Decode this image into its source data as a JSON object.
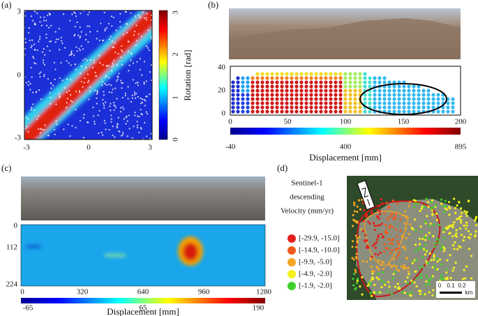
{
  "panels": [
    {
      "label": "(a)",
      "yticks": [
        "3",
        "0",
        "-3"
      ],
      "xticks": [
        "-3",
        "0",
        "3"
      ],
      "colorbar": {
        "ticks": [
          "3",
          "2",
          "1",
          "0"
        ],
        "label": "Rotation [rad]"
      }
    },
    {
      "label": "(b)",
      "yticks": [
        "40",
        "20",
        "0"
      ],
      "xticks": [
        "0",
        "50",
        "100",
        "150",
        "200"
      ],
      "colorbar": {
        "ticks": [
          "-40",
          "400",
          "895"
        ],
        "label": "Displacement [mm]"
      }
    },
    {
      "label": "(c)",
      "yticks": [
        "0",
        "112",
        "224"
      ],
      "xticks": [
        "0",
        "320",
        "640",
        "960",
        "1280"
      ],
      "colorbar": {
        "ticks": [
          "-65",
          "65",
          "190"
        ],
        "label": "Displacement [mm]"
      }
    },
    {
      "label": "(d)",
      "title": [
        "Sentinel-1",
        "descending",
        "Velocity (mm/yr)"
      ],
      "legend": [
        {
          "label": "[-29.9, -15.0]",
          "color": "#e3201b"
        },
        {
          "label": "[-14.9, -10.0]",
          "color": "#f05a1e"
        },
        {
          "label": "[-9.9, -5.0]",
          "color": "#f5a623"
        },
        {
          "label": "[-4.9, -2.0]",
          "color": "#f4f21c"
        },
        {
          "label": "[-1.9, -2.0]",
          "color": "#3fd12b"
        }
      ],
      "scale": [
        "0",
        "0.1",
        "0.2"
      ],
      "scale_unit": "km"
    }
  ]
}
